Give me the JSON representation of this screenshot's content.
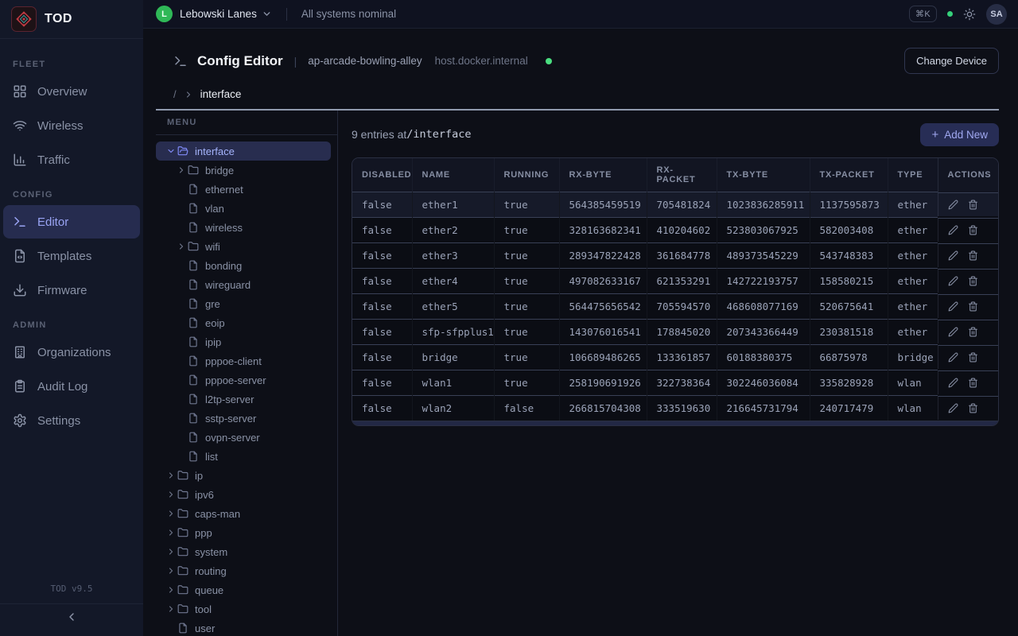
{
  "brand": {
    "logo_text": "TOD",
    "version": "TOD v9.5"
  },
  "colors": {
    "accent_indigo": "#818cf8",
    "green": "#4ade80",
    "sidebar_bg": "#131828"
  },
  "topbar": {
    "org_initial": "L",
    "org_name": "Lebowski Lanes",
    "status_text": "All systems nominal",
    "kbd_shortcut": "⌘K",
    "user_initials": "SA"
  },
  "sidebar": {
    "sections": [
      {
        "label": "FLEET",
        "items": [
          {
            "label": "Overview",
            "icon": "grid"
          },
          {
            "label": "Wireless",
            "icon": "wifi"
          },
          {
            "label": "Traffic",
            "icon": "chart"
          }
        ]
      },
      {
        "label": "CONFIG",
        "items": [
          {
            "label": "Editor",
            "icon": "terminal",
            "active": true
          },
          {
            "label": "Templates",
            "icon": "file-code"
          },
          {
            "label": "Firmware",
            "icon": "download"
          }
        ]
      },
      {
        "label": "ADMIN",
        "items": [
          {
            "label": "Organizations",
            "icon": "building"
          },
          {
            "label": "Audit Log",
            "icon": "clipboard"
          },
          {
            "label": "Settings",
            "icon": "gear"
          }
        ]
      }
    ]
  },
  "header": {
    "title": "Config Editor",
    "pipe": "|",
    "device_name": "ap-arcade-bowling-alley",
    "device_host": "host.docker.internal",
    "change_device_label": "Change Device",
    "breadcrumb_root": "/",
    "breadcrumb_current": "interface"
  },
  "tree": {
    "menu_label": "MENU",
    "items": [
      {
        "label": "interface",
        "icon": "folder-open",
        "chevron": "down",
        "depth": 0,
        "active": true
      },
      {
        "label": "bridge",
        "icon": "folder",
        "chevron": "right",
        "depth": 1
      },
      {
        "label": "ethernet",
        "icon": "file",
        "depth": 1
      },
      {
        "label": "vlan",
        "icon": "file",
        "depth": 1
      },
      {
        "label": "wireless",
        "icon": "file",
        "depth": 1
      },
      {
        "label": "wifi",
        "icon": "folder",
        "chevron": "right",
        "depth": 1
      },
      {
        "label": "bonding",
        "icon": "file",
        "depth": 1
      },
      {
        "label": "wireguard",
        "icon": "file",
        "depth": 1
      },
      {
        "label": "gre",
        "icon": "file",
        "depth": 1
      },
      {
        "label": "eoip",
        "icon": "file",
        "depth": 1
      },
      {
        "label": "ipip",
        "icon": "file",
        "depth": 1
      },
      {
        "label": "pppoe-client",
        "icon": "file",
        "depth": 1
      },
      {
        "label": "pppoe-server",
        "icon": "file",
        "depth": 1
      },
      {
        "label": "l2tp-server",
        "icon": "file",
        "depth": 1
      },
      {
        "label": "sstp-server",
        "icon": "file",
        "depth": 1
      },
      {
        "label": "ovpn-server",
        "icon": "file",
        "depth": 1
      },
      {
        "label": "list",
        "icon": "file",
        "depth": 1
      },
      {
        "label": "ip",
        "icon": "folder",
        "chevron": "right",
        "depth": 0
      },
      {
        "label": "ipv6",
        "icon": "folder",
        "chevron": "right",
        "depth": 0
      },
      {
        "label": "caps-man",
        "icon": "folder",
        "chevron": "right",
        "depth": 0
      },
      {
        "label": "ppp",
        "icon": "folder",
        "chevron": "right",
        "depth": 0
      },
      {
        "label": "system",
        "icon": "folder",
        "chevron": "right",
        "depth": 0
      },
      {
        "label": "routing",
        "icon": "folder",
        "chevron": "right",
        "depth": 0
      },
      {
        "label": "queue",
        "icon": "folder",
        "chevron": "right",
        "depth": 0
      },
      {
        "label": "tool",
        "icon": "folder",
        "chevron": "right",
        "depth": 0
      },
      {
        "label": "user",
        "icon": "file",
        "depth": 0
      },
      {
        "label": "",
        "icon": "file",
        "depth": 0
      }
    ]
  },
  "table": {
    "summary_prefix": "9 entries at ",
    "summary_path": "/interface",
    "add_new_plus": "+",
    "add_new_label": "Add New",
    "columns": [
      "DISABLED",
      "NAME",
      "RUNNING",
      "RX-BYTE",
      "RX-PACKET",
      "TX-BYTE",
      "TX-PACKET",
      "TYPE",
      "ACTIONS"
    ],
    "rows": [
      [
        "false",
        "ether1",
        "true",
        "564385459519",
        "705481824",
        "1023836285911",
        "1137595873",
        "ether"
      ],
      [
        "false",
        "ether2",
        "true",
        "328163682341",
        "410204602",
        "523803067925",
        "582003408",
        "ether"
      ],
      [
        "false",
        "ether3",
        "true",
        "289347822428",
        "361684778",
        "489373545229",
        "543748383",
        "ether"
      ],
      [
        "false",
        "ether4",
        "true",
        "497082633167",
        "621353291",
        "142722193757",
        "158580215",
        "ether"
      ],
      [
        "false",
        "ether5",
        "true",
        "564475656542",
        "705594570",
        "468608077169",
        "520675641",
        "ether"
      ],
      [
        "false",
        "sfp-sfpplus1",
        "true",
        "143076016541",
        "178845020",
        "207343366449",
        "230381518",
        "ether"
      ],
      [
        "false",
        "bridge",
        "true",
        "106689486265",
        "133361857",
        "60188380375",
        "66875978",
        "bridge"
      ],
      [
        "false",
        "wlan1",
        "true",
        "258190691926",
        "322738364",
        "302246036084",
        "335828928",
        "wlan"
      ],
      [
        "false",
        "wlan2",
        "false",
        "266815704308",
        "333519630",
        "216645731794",
        "240717479",
        "wlan"
      ]
    ]
  }
}
